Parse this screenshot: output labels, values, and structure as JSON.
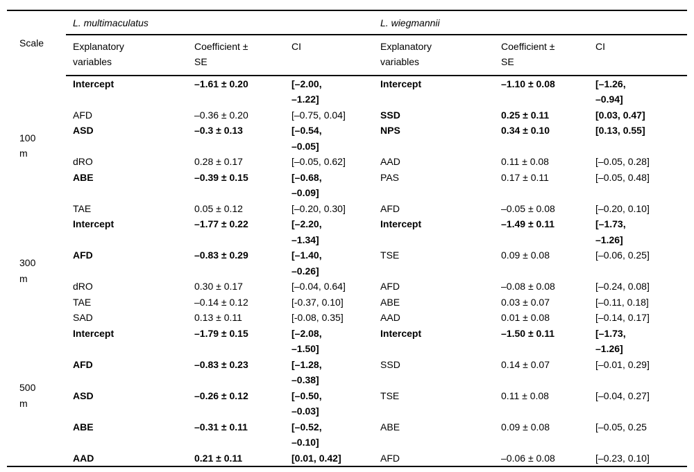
{
  "page": {
    "background_color": "#ffffff",
    "text_color": "#000000",
    "rule_color": "#000000"
  },
  "table": {
    "scale_header": "Scale",
    "species": {
      "left": "L. multimaculatus",
      "right": "L. wiegmannii"
    },
    "columns": {
      "explanatory": "Explanatory\nvariables",
      "coefficient": "Coefficient ±\nSE",
      "ci": "CI"
    },
    "groups": [
      {
        "scale": "100\nm",
        "rows": [
          {
            "left": {
              "v": "Intercept",
              "c": "–1.61 ± 0.20",
              "ci": "[–2.00,\n–1.22]",
              "b": true
            },
            "right": {
              "v": "Intercept",
              "c": "–1.10 ± 0.08",
              "ci": "[–1.26,\n–0.94]",
              "b": true
            }
          },
          {
            "left": {
              "v": "AFD",
              "c": "–0.36 ± 0.20",
              "ci": "[–0.75, 0.04]",
              "b": false
            },
            "right": {
              "v": "SSD",
              "c": "0.25 ± 0.11",
              "ci": "[0.03, 0.47]",
              "b": true
            }
          },
          {
            "left": {
              "v": "ASD",
              "c": "–0.3 ± 0.13",
              "ci": "[–0.54,\n–0.05]",
              "b": true
            },
            "right": {
              "v": "NPS",
              "c": "0.34 ± 0.10",
              "ci": "[0.13, 0.55]",
              "b": true
            }
          },
          {
            "left": {
              "v": "dRO",
              "c": "0.28 ± 0.17",
              "ci": "[–0.05, 0.62]",
              "b": false
            },
            "right": {
              "v": "AAD",
              "c": "0.11 ± 0.08",
              "ci": "[–0.05, 0.28]",
              "b": false
            }
          },
          {
            "left": {
              "v": "ABE",
              "c": "–0.39 ± 0.15",
              "ci": "[–0.68,\n–0.09]",
              "b": true
            },
            "right": {
              "v": "PAS",
              "c": "0.17 ± 0.11",
              "ci": "[–0.05, 0.48]",
              "b": false
            }
          },
          {
            "left": {
              "v": "TAE",
              "c": "0.05 ± 0.12",
              "ci": "[–0.20, 0.30]",
              "b": false
            },
            "right": {
              "v": "AFD",
              "c": "–0.05 ± 0.08",
              "ci": "[–0.20, 0.10]",
              "b": false
            }
          }
        ]
      },
      {
        "scale": "300\nm",
        "rows": [
          {
            "left": {
              "v": "Intercept",
              "c": "–1.77 ± 0.22",
              "ci": "[–2.20,\n–1.34]",
              "b": true
            },
            "right": {
              "v": "Intercept",
              "c": "–1.49 ± 0.11",
              "ci": "[–1.73,\n–1.26]",
              "b": true
            }
          },
          {
            "left": {
              "v": "AFD",
              "c": "–0.83 ± 0.29",
              "ci": "[–1.40,\n–0.26]",
              "b": true
            },
            "right": {
              "v": "TSE",
              "c": "0.09 ± 0.08",
              "ci": "[–0.06, 0.25]",
              "b": false
            }
          },
          {
            "left": {
              "v": "dRO",
              "c": "0.30 ± 0.17",
              "ci": "[–0.04, 0.64]",
              "b": false
            },
            "right": {
              "v": "AFD",
              "c": "–0.08 ± 0.08",
              "ci": "[–0.24, 0.08]",
              "b": false
            }
          },
          {
            "left": {
              "v": "TAE",
              "c": "–0.14 ± 0.12",
              "ci": "[-0.37, 0.10]",
              "b": false
            },
            "right": {
              "v": "ABE",
              "c": "0.03 ± 0.07",
              "ci": "[–0.11, 0.18]",
              "b": false
            }
          },
          {
            "left": {
              "v": "SAD",
              "c": "0.13 ± 0.11",
              "ci": "[-0.08, 0.35]",
              "b": false
            },
            "right": {
              "v": "AAD",
              "c": "0.01 ± 0.08",
              "ci": "[–0.14, 0.17]",
              "b": false
            }
          }
        ]
      },
      {
        "scale": "500\nm",
        "rows": [
          {
            "left": {
              "v": "Intercept",
              "c": "–1.79 ± 0.15",
              "ci": "[–2.08,\n–1.50]",
              "b": true
            },
            "right": {
              "v": "Intercept",
              "c": "–1.50 ± 0.11",
              "ci": "[–1.73,\n–1.26]",
              "b": true
            }
          },
          {
            "left": {
              "v": "AFD",
              "c": "–0.83 ± 0.23",
              "ci": "[–1.28,\n–0.38]",
              "b": true
            },
            "right": {
              "v": "SSD",
              "c": "0.14 ± 0.07",
              "ci": "[–0.01, 0.29]",
              "b": false
            }
          },
          {
            "left": {
              "v": "ASD",
              "c": "–0.26 ± 0.12",
              "ci": "[–0.50,\n–0.03]",
              "b": true
            },
            "right": {
              "v": "TSE",
              "c": "0.11 ± 0.08",
              "ci": "[–0.04, 0.27]",
              "b": false
            }
          },
          {
            "left": {
              "v": "ABE",
              "c": "–0.31 ± 0.11",
              "ci": "[–0.52,\n–0.10]",
              "b": true
            },
            "right": {
              "v": "ABE",
              "c": "0.09 ± 0.08",
              "ci": "[–0.05, 0.25",
              "b": false
            }
          },
          {
            "left": {
              "v": "AAD",
              "c": "0.21 ± 0.11",
              "ci": "[0.01, 0.42]",
              "b": true
            },
            "right": {
              "v": "AFD",
              "c": "–0.06 ± 0.08",
              "ci": "[–0.23, 0.10]",
              "b": false
            }
          }
        ]
      }
    ]
  }
}
